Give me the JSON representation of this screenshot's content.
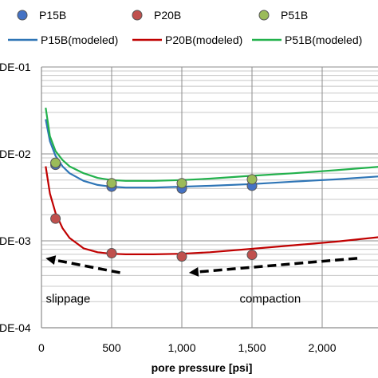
{
  "chart_data": {
    "type": "scatter",
    "xlabel": "pore pressure [psi]",
    "ylabel": "",
    "xlim": [
      0,
      2400
    ],
    "ylim": [
      0.0001,
      0.1
    ],
    "y_scale": "log",
    "grid": true,
    "legend_position": "top",
    "x_ticks": [
      "0",
      "500",
      "1,000",
      "1,500",
      "2,000"
    ],
    "x_tick_values": [
      0,
      500,
      1000,
      1500,
      2000
    ],
    "y_ticks": [
      "DE-01",
      "DE-02",
      "DE-03",
      "DE-04"
    ],
    "y_tick_values": [
      0.1,
      0.01,
      0.001,
      0.0001
    ],
    "series": [
      {
        "name": "P15B",
        "kind": "points",
        "color": "#4472C4",
        "x": [
          100,
          500,
          1000,
          1500
        ],
        "y": [
          0.0075,
          0.0042,
          0.004,
          0.0043
        ]
      },
      {
        "name": "P20B",
        "kind": "points",
        "color": "#C0504D",
        "x": [
          100,
          500,
          1000,
          1500
        ],
        "y": [
          0.0018,
          0.00072,
          0.00066,
          0.00069
        ]
      },
      {
        "name": "P51B",
        "kind": "points",
        "color": "#9BBB59",
        "x": [
          100,
          500,
          1000,
          1500
        ],
        "y": [
          0.0079,
          0.0046,
          0.0046,
          0.0051
        ]
      },
      {
        "name": "P15B(modeled)",
        "kind": "line",
        "color": "#2E75B6",
        "x": [
          30,
          60,
          100,
          150,
          200,
          300,
          400,
          500,
          600,
          800,
          1000,
          1200,
          1500,
          1800,
          2100,
          2400
        ],
        "y": [
          0.025,
          0.014,
          0.0095,
          0.0072,
          0.006,
          0.0049,
          0.0044,
          0.0042,
          0.0041,
          0.0041,
          0.0042,
          0.0043,
          0.0045,
          0.0048,
          0.0051,
          0.0055
        ]
      },
      {
        "name": "P20B(modeled)",
        "kind": "line",
        "color": "#C00000",
        "x": [
          30,
          60,
          100,
          150,
          200,
          300,
          400,
          500,
          600,
          800,
          1000,
          1200,
          1500,
          1800,
          2100,
          2400
        ],
        "y": [
          0.0072,
          0.0035,
          0.0021,
          0.0014,
          0.00108,
          0.00082,
          0.00074,
          0.00071,
          0.0007,
          0.0007,
          0.00071,
          0.00074,
          0.00081,
          0.00089,
          0.00098,
          0.0011
        ]
      },
      {
        "name": "P51B(modeled)",
        "kind": "line",
        "color": "#22B14C",
        "x": [
          30,
          60,
          100,
          150,
          200,
          300,
          400,
          500,
          600,
          800,
          1000,
          1200,
          1500,
          1800,
          2100,
          2400
        ],
        "y": [
          0.034,
          0.016,
          0.0108,
          0.0085,
          0.0072,
          0.006,
          0.0053,
          0.005,
          0.0049,
          0.0049,
          0.005,
          0.0052,
          0.0056,
          0.006,
          0.0065,
          0.0071
        ]
      }
    ],
    "annotations": [
      {
        "text": "slippage",
        "x": 190,
        "y": 0.000195
      },
      {
        "text": "compaction",
        "x": 1630,
        "y": 0.000195
      }
    ],
    "arrows": [
      {
        "x1": 560,
        "y1": 0.00043,
        "x2": 30,
        "y2": 0.00063
      },
      {
        "x1": 2250,
        "y1": 0.00063,
        "x2": 1050,
        "y2": 0.00043
      }
    ]
  }
}
